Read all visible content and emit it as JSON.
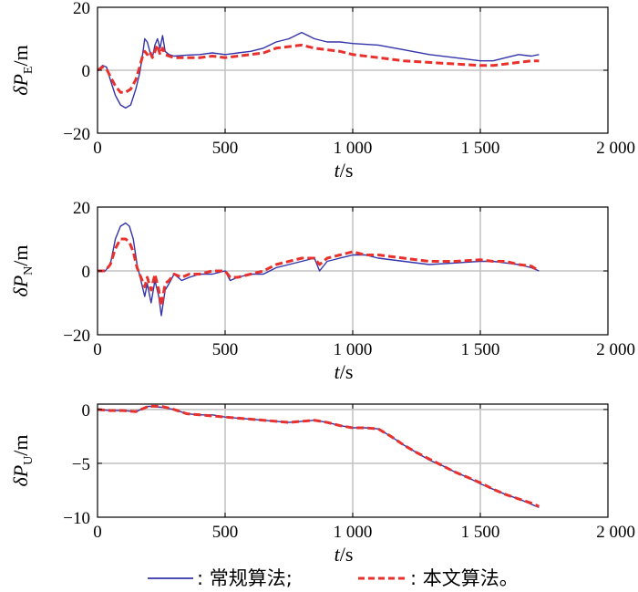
{
  "chart_data": [
    {
      "type": "line",
      "ylabel_main": "δP",
      "ylabel_sub": "E",
      "ylabel_unit": "/m",
      "xlabel_main": "t",
      "xlabel_unit": "/s",
      "xlim": [
        0,
        2000
      ],
      "ylim": [
        -20,
        20
      ],
      "x_ticks": [
        0,
        500,
        1000,
        1500,
        2000
      ],
      "x_tick_labels": [
        "0",
        "500",
        "1 000",
        "1 500",
        "2 000"
      ],
      "y_ticks": [
        -20,
        0,
        20
      ],
      "y_tick_labels": [
        "−20",
        "0",
        "20"
      ],
      "grid": true,
      "series": [
        {
          "name": "常规算法",
          "color": "#3333aa",
          "style": "solid",
          "x": [
            0,
            20,
            35,
            50,
            70,
            90,
            110,
            130,
            150,
            165,
            175,
            185,
            195,
            205,
            215,
            225,
            235,
            245,
            255,
            265,
            280,
            300,
            350,
            400,
            450,
            500,
            550,
            600,
            650,
            700,
            750,
            800,
            850,
            900,
            950,
            1000,
            1100,
            1200,
            1300,
            1400,
            1500,
            1550,
            1600,
            1650,
            1700,
            1730
          ],
          "y": [
            0,
            1.5,
            1,
            -3,
            -8,
            -11,
            -12,
            -11,
            -6,
            -1,
            4,
            10,
            9,
            6,
            4,
            8,
            10,
            7,
            11,
            6,
            5,
            4.5,
            4.8,
            5,
            5.5,
            5,
            5.5,
            6,
            7,
            9,
            10,
            12,
            10,
            9,
            9,
            8.5,
            8,
            6.5,
            5,
            4,
            3,
            3,
            4,
            5,
            4.5,
            5
          ]
        },
        {
          "name": "本文算法",
          "color": "#e8302c",
          "style": "dashed",
          "x": [
            0,
            20,
            35,
            50,
            70,
            90,
            110,
            130,
            150,
            165,
            175,
            185,
            195,
            205,
            215,
            225,
            235,
            245,
            255,
            265,
            280,
            300,
            350,
            400,
            450,
            500,
            550,
            600,
            650,
            700,
            750,
            800,
            850,
            900,
            950,
            1000,
            1100,
            1200,
            1300,
            1400,
            1500,
            1550,
            1600,
            1650,
            1700,
            1730
          ],
          "y": [
            0,
            1,
            0.5,
            -2,
            -5,
            -7,
            -7,
            -6,
            -3,
            1,
            4,
            6,
            5,
            6,
            4,
            6,
            8,
            5,
            7,
            5,
            4.5,
            4,
            4,
            4,
            4.5,
            4,
            4.5,
            5,
            5.5,
            7,
            7.5,
            8,
            7,
            6.5,
            6,
            5,
            4,
            3,
            2.5,
            2,
            1.5,
            1.5,
            2,
            2.5,
            3,
            3
          ]
        }
      ]
    },
    {
      "type": "line",
      "ylabel_main": "δP",
      "ylabel_sub": "N",
      "ylabel_unit": "/m",
      "xlabel_main": "t",
      "xlabel_unit": "/s",
      "xlim": [
        0,
        2000
      ],
      "ylim": [
        -20,
        20
      ],
      "x_ticks": [
        0,
        500,
        1000,
        1500,
        2000
      ],
      "x_tick_labels": [
        "0",
        "500",
        "1 000",
        "1 500",
        "2 000"
      ],
      "y_ticks": [
        -20,
        0,
        20
      ],
      "y_tick_labels": [
        "−20",
        "0",
        "20"
      ],
      "grid": true,
      "series": [
        {
          "name": "常规算法",
          "color": "#3333aa",
          "style": "solid",
          "x": [
            0,
            30,
            50,
            70,
            90,
            110,
            125,
            140,
            155,
            170,
            185,
            195,
            210,
            225,
            240,
            250,
            265,
            280,
            300,
            330,
            360,
            400,
            450,
            500,
            520,
            550,
            600,
            650,
            700,
            750,
            800,
            850,
            870,
            900,
            950,
            1000,
            1050,
            1100,
            1200,
            1300,
            1400,
            1500,
            1550,
            1600,
            1650,
            1700,
            1730
          ],
          "y": [
            0,
            0,
            2,
            10,
            14,
            15,
            14,
            10,
            2,
            -3,
            -8,
            -4,
            -10,
            -3,
            -8,
            -14,
            -6,
            -4,
            -1,
            -3,
            -2,
            -1,
            -1,
            0,
            -3,
            -2,
            -1,
            -1,
            1,
            2,
            3,
            4,
            0,
            3,
            4,
            5,
            5,
            4,
            3,
            2,
            2.5,
            3,
            3,
            2.5,
            2,
            1,
            0
          ]
        },
        {
          "name": "本文算法",
          "color": "#e8302c",
          "style": "dashed",
          "x": [
            0,
            30,
            50,
            70,
            90,
            110,
            125,
            140,
            155,
            170,
            185,
            195,
            210,
            225,
            240,
            250,
            265,
            280,
            300,
            330,
            360,
            400,
            450,
            500,
            520,
            550,
            600,
            650,
            700,
            750,
            800,
            850,
            870,
            900,
            950,
            1000,
            1050,
            1100,
            1200,
            1300,
            1400,
            1500,
            1550,
            1600,
            1650,
            1700,
            1730
          ],
          "y": [
            0,
            0,
            2,
            7,
            10,
            10,
            9,
            6,
            1,
            -2,
            -5,
            -2,
            -6,
            -1,
            -6,
            -11,
            -4,
            -3,
            -1,
            -2,
            -1,
            -1,
            0,
            0,
            -2,
            -2,
            -1,
            0,
            2,
            3,
            4,
            4,
            2,
            4,
            5,
            6,
            5,
            5,
            4,
            3,
            3,
            3.5,
            3,
            3,
            2,
            1.5,
            0
          ]
        }
      ]
    },
    {
      "type": "line",
      "ylabel_main": "δP",
      "ylabel_sub": "U",
      "ylabel_unit": "/m",
      "xlabel_main": "t",
      "xlabel_unit": "/s",
      "xlim": [
        0,
        2000
      ],
      "ylim": [
        -10,
        0.5
      ],
      "x_ticks": [
        0,
        500,
        1000,
        1500,
        2000
      ],
      "x_tick_labels": [
        "0",
        "500",
        "1 000",
        "1 500",
        "2 000"
      ],
      "y_ticks": [
        -10,
        -5,
        0
      ],
      "y_tick_labels": [
        "−10",
        "−5",
        "0"
      ],
      "grid": true,
      "series": [
        {
          "name": "常规算法",
          "color": "#3333aa",
          "style": "solid",
          "x": [
            0,
            50,
            100,
            150,
            200,
            250,
            300,
            350,
            400,
            450,
            500,
            550,
            600,
            650,
            700,
            750,
            800,
            850,
            900,
            950,
            1000,
            1050,
            1100,
            1150,
            1200,
            1250,
            1300,
            1350,
            1400,
            1450,
            1500,
            1550,
            1600,
            1650,
            1700,
            1730
          ],
          "y": [
            0,
            -0.1,
            -0.1,
            -0.2,
            0.3,
            0.2,
            0,
            -0.4,
            -0.5,
            -0.5,
            -0.7,
            -0.8,
            -0.9,
            -1,
            -1.1,
            -1.2,
            -1.1,
            -1,
            -1.2,
            -1.5,
            -1.7,
            -1.7,
            -1.8,
            -2.5,
            -3.3,
            -4,
            -4.7,
            -5.2,
            -5.8,
            -6.3,
            -6.9,
            -7.4,
            -7.9,
            -8.3,
            -8.8,
            -9.1
          ]
        },
        {
          "name": "本文算法",
          "color": "#e8302c",
          "style": "dashed",
          "x": [
            0,
            50,
            100,
            150,
            200,
            250,
            300,
            350,
            400,
            450,
            500,
            550,
            600,
            650,
            700,
            750,
            800,
            850,
            900,
            950,
            1000,
            1050,
            1100,
            1150,
            1200,
            1250,
            1300,
            1350,
            1400,
            1450,
            1500,
            1550,
            1600,
            1650,
            1700,
            1730
          ],
          "y": [
            0,
            -0.1,
            -0.1,
            -0.2,
            0.3,
            0.3,
            0,
            -0.4,
            -0.5,
            -0.6,
            -0.7,
            -0.8,
            -0.9,
            -1,
            -1.1,
            -1.2,
            -1.1,
            -1,
            -1.2,
            -1.5,
            -1.7,
            -1.7,
            -1.8,
            -2.5,
            -3.3,
            -4,
            -4.6,
            -5.2,
            -5.8,
            -6.3,
            -6.8,
            -7.4,
            -7.9,
            -8.3,
            -8.7,
            -9
          ]
        }
      ]
    }
  ],
  "legend": {
    "items": [
      {
        "label": ": 常规算法;",
        "color": "#3333aa",
        "style": "solid"
      },
      {
        "label": ": 本文算法。",
        "color": "#e8302c",
        "style": "dashed"
      }
    ]
  }
}
